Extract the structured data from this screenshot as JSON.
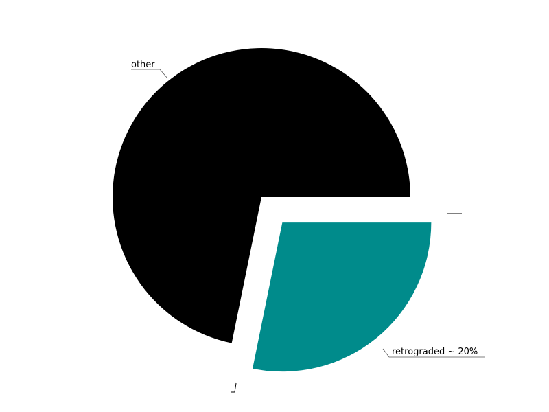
{
  "chart_data": {
    "type": "pie",
    "slices": [
      {
        "label": "other",
        "value": 71.8,
        "color": "#000000",
        "exploded": false
      },
      {
        "label": "retrograded ~ 20%",
        "value": 28.2,
        "color": "#008b8b",
        "exploded": true
      }
    ],
    "legend": "none"
  }
}
